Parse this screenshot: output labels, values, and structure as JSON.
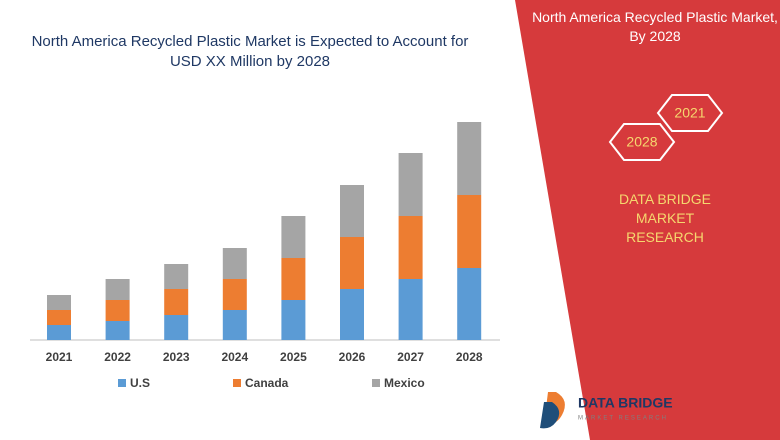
{
  "chart_data": {
    "type": "stacked_bar",
    "title": "North America Recycled Plastic Market is Expected to Account for USD XX Million by 2028",
    "categories": [
      "2021",
      "2022",
      "2023",
      "2024",
      "2025",
      "2026",
      "2027",
      "2028"
    ],
    "series": [
      {
        "name": "U.S",
        "color": "#5b9bd5",
        "values": [
          15,
          19,
          25,
          30,
          40,
          51,
          61,
          72
        ]
      },
      {
        "name": "Canada",
        "color": "#ed7d31",
        "values": [
          15,
          21,
          26,
          31,
          42,
          52,
          63,
          73
        ]
      },
      {
        "name": "Mexico",
        "color": "#a5a5a5",
        "values": [
          15,
          21,
          25,
          31,
          42,
          52,
          63,
          73
        ]
      }
    ]
  },
  "side_panel": {
    "title": "North America Recycled Plastic Market, By 2028",
    "hex_start": "2021",
    "hex_end": "2028",
    "brand": "DATA BRIDGE MARKET RESEARCH"
  },
  "logo": {
    "name": "DATA BRIDGE",
    "tagline": "MARKET RESEARCH"
  }
}
